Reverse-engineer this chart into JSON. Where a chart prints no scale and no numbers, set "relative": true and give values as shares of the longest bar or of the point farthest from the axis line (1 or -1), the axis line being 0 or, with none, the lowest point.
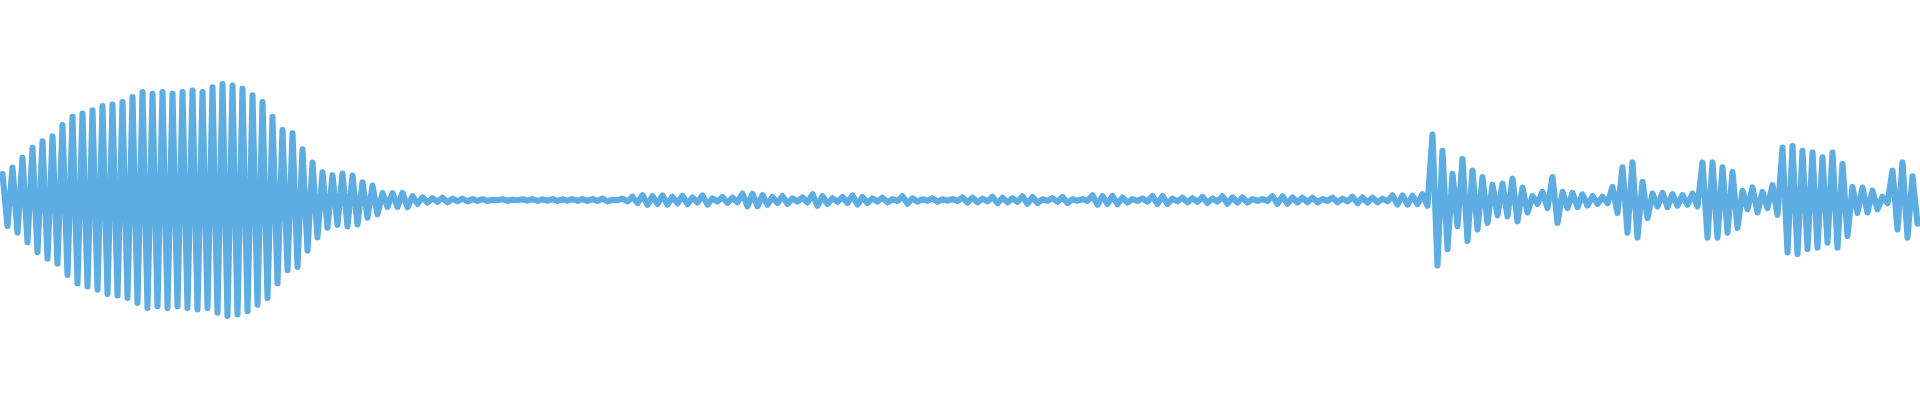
{
  "chart_data": {
    "type": "line",
    "relative": true,
    "categories": [
      null,
      null,
      null,
      null,
      null,
      null,
      null,
      null,
      null,
      null,
      null,
      null,
      null,
      null,
      null,
      null,
      null,
      null,
      null,
      null,
      null,
      null,
      null,
      null,
      null,
      null,
      null,
      null,
      null,
      null,
      null,
      null,
      null,
      null,
      null,
      null,
      null,
      null,
      null,
      null,
      null,
      null,
      null,
      null,
      null,
      null,
      null,
      null,
      null,
      null,
      null,
      null,
      null,
      null,
      null,
      null,
      null,
      null,
      null,
      null,
      null,
      null,
      null,
      null,
      null,
      null,
      null,
      null,
      null,
      null,
      null,
      null,
      null,
      null,
      null,
      null,
      null,
      null,
      null,
      null,
      null,
      null,
      null,
      null,
      null,
      null,
      null,
      null,
      null,
      null,
      null,
      null,
      null,
      null,
      null,
      null,
      null,
      null,
      null,
      null,
      null,
      null,
      null,
      null,
      null,
      null,
      null,
      null,
      null,
      null,
      null,
      null,
      null,
      null,
      null,
      null,
      null,
      null,
      null,
      null,
      null,
      null,
      null,
      null,
      null,
      null,
      null,
      null,
      null,
      null,
      null,
      null,
      null,
      null,
      null,
      null,
      null,
      null,
      null,
      null,
      null,
      null,
      null,
      null,
      null,
      null,
      null,
      null,
      null,
      null,
      null,
      null,
      null,
      null,
      null,
      null,
      null,
      null,
      null,
      null,
      null,
      null,
      null,
      null,
      null,
      null,
      null,
      null,
      null,
      null,
      null,
      null,
      null,
      null,
      null,
      null,
      null,
      null,
      null,
      null,
      null,
      null,
      null,
      null,
      null,
      null,
      null,
      null,
      null,
      null,
      null,
      null,
      null,
      null,
      null,
      null,
      null,
      null,
      null,
      null,
      null,
      null,
      null,
      null,
      null,
      null,
      null,
      null,
      null,
      null,
      null,
      null,
      null,
      null,
      null,
      null,
      null,
      null,
      null,
      null,
      null,
      null,
      null,
      null,
      null,
      null,
      null,
      null,
      null,
      null,
      null,
      null,
      null,
      null,
      null,
      null,
      null,
      null,
      null,
      null,
      null,
      null,
      null,
      null,
      null,
      null,
      null,
      null,
      null,
      null,
      null,
      null,
      null,
      null,
      null,
      null,
      null,
      null,
      null,
      null,
      null,
      null,
      null,
      null,
      null,
      null,
      null,
      null,
      null,
      null,
      null,
      null,
      null,
      null,
      null,
      null,
      null,
      null,
      null,
      null,
      null,
      null,
      null,
      null,
      null,
      null,
      null,
      null,
      null,
      null,
      null,
      null,
      null,
      null,
      null,
      null,
      null,
      null,
      null,
      null,
      null,
      null,
      null,
      null,
      null,
      null,
      null,
      null,
      null,
      null,
      null,
      null,
      null,
      null,
      null,
      null,
      null,
      null,
      null,
      null,
      null,
      null,
      null,
      null,
      null,
      null,
      null,
      null,
      null,
      null,
      null,
      null,
      null,
      null,
      null,
      null,
      null,
      null,
      null,
      null,
      null,
      null,
      null,
      null,
      null,
      null,
      null,
      null,
      null,
      null,
      null,
      null,
      null,
      null,
      null,
      null,
      null,
      null,
      null,
      null,
      null,
      null,
      null,
      null,
      null,
      null,
      null,
      null,
      null,
      null,
      null,
      null,
      null,
      null,
      null,
      null,
      null,
      null,
      null,
      null,
      null,
      null,
      null,
      null
    ],
    "series": [
      {
        "color": "#5dade2",
        "values": [
          0.612,
          0.388,
          0.64,
          0.36,
          0.682,
          0.318,
          0.725,
          0.275,
          0.753,
          0.247,
          0.774,
          0.226,
          0.823,
          0.177,
          0.859,
          0.141,
          0.873,
          0.127,
          0.887,
          0.113,
          0.905,
          0.095,
          0.911,
          0.089,
          0.922,
          0.078,
          0.944,
          0.056,
          0.965,
          0.035,
          0.958,
          0.042,
          0.965,
          0.035,
          0.958,
          0.042,
          0.965,
          0.035,
          0.972,
          0.028,
          0.965,
          0.035,
          0.986,
          0.014,
          1.0,
          0.0,
          0.993,
          0.007,
          0.979,
          0.021,
          0.951,
          0.049,
          0.922,
          0.078,
          0.859,
          0.141,
          0.802,
          0.198,
          0.788,
          0.212,
          0.718,
          0.282,
          0.661,
          0.339,
          0.619,
          0.381,
          0.607,
          0.393,
          0.614,
          0.386,
          0.605,
          0.395,
          0.576,
          0.424,
          0.562,
          0.438,
          0.53,
          0.47,
          0.53,
          0.47,
          0.531,
          0.469,
          0.517,
          0.483,
          0.511,
          0.489,
          0.508,
          0.492,
          0.51,
          0.49,
          0.506,
          0.494,
          0.506,
          0.494,
          0.504,
          0.496,
          0.504,
          0.496,
          0.501,
          0.499,
          0.503,
          0.497,
          0.501,
          0.499,
          0.503,
          0.497,
          0.504,
          0.496,
          0.503,
          0.497,
          0.504,
          0.496,
          0.503,
          0.497,
          0.504,
          0.496,
          0.504,
          0.496,
          0.504,
          0.496,
          0.506,
          0.494,
          0.501,
          0.499,
          0.506,
          0.494,
          0.514,
          0.486,
          0.521,
          0.479,
          0.517,
          0.483,
          0.52,
          0.48,
          0.514,
          0.486,
          0.518,
          0.482,
          0.511,
          0.489,
          0.52,
          0.48,
          0.507,
          0.493,
          0.513,
          0.487,
          0.51,
          0.49,
          0.528,
          0.472,
          0.527,
          0.473,
          0.521,
          0.479,
          0.513,
          0.487,
          0.517,
          0.483,
          0.507,
          0.493,
          0.511,
          0.489,
          0.525,
          0.475,
          0.517,
          0.483,
          0.508,
          0.492,
          0.513,
          0.487,
          0.52,
          0.48,
          0.513,
          0.487,
          0.507,
          0.493,
          0.51,
          0.49,
          0.504,
          0.496,
          0.516,
          0.484,
          0.507,
          0.493,
          0.503,
          0.497,
          0.507,
          0.493,
          0.503,
          0.497,
          0.504,
          0.496,
          0.511,
          0.489,
          0.51,
          0.49,
          0.506,
          0.494,
          0.514,
          0.486,
          0.51,
          0.49,
          0.508,
          0.492,
          0.516,
          0.484,
          0.513,
          0.487,
          0.503,
          0.497,
          0.508,
          0.492,
          0.513,
          0.487,
          0.503,
          0.497,
          0.504,
          0.496,
          0.521,
          0.479,
          0.517,
          0.483,
          0.518,
          0.482,
          0.511,
          0.489,
          0.504,
          0.496,
          0.507,
          0.493,
          0.517,
          0.483,
          0.517,
          0.483,
          0.506,
          0.494,
          0.51,
          0.49,
          0.508,
          0.492,
          0.513,
          0.487,
          0.507,
          0.493,
          0.516,
          0.484,
          0.511,
          0.489,
          0.511,
          0.489,
          0.504,
          0.496,
          0.504,
          0.496,
          0.516,
          0.484,
          0.516,
          0.484,
          0.511,
          0.489,
          0.51,
          0.49,
          0.51,
          0.49,
          0.504,
          0.496,
          0.51,
          0.49,
          0.506,
          0.494,
          0.514,
          0.486,
          0.511,
          0.489,
          0.51,
          0.49,
          0.506,
          0.494,
          0.52,
          0.48,
          0.52,
          0.48,
          0.518,
          0.482,
          0.525,
          0.475,
          0.782,
          0.218,
          0.712,
          0.288,
          0.613,
          0.387,
          0.677,
          0.323,
          0.627,
          0.373,
          0.599,
          0.401,
          0.566,
          0.434,
          0.571,
          0.429,
          0.592,
          0.408,
          0.554,
          0.446,
          0.517,
          0.483,
          0.535,
          0.465,
          0.599,
          0.401,
          0.535,
          0.465,
          0.531,
          0.469,
          0.524,
          0.476,
          0.517,
          0.483,
          0.514,
          0.486,
          0.556,
          0.444,
          0.641,
          0.359,
          0.662,
          0.338,
          0.578,
          0.422,
          0.528,
          0.472,
          0.531,
          0.469,
          0.525,
          0.475,
          0.521,
          0.479,
          0.528,
          0.472,
          0.662,
          0.338,
          0.662,
          0.338,
          0.641,
          0.359,
          0.62,
          0.38,
          0.54,
          0.46,
          0.554,
          0.446,
          0.535,
          0.465,
          0.564,
          0.436,
          0.726,
          0.274,
          0.733,
          0.267,
          0.712,
          0.288,
          0.705,
          0.295,
          0.684,
          0.316,
          0.705,
          0.295,
          0.655,
          0.345,
          0.556,
          0.444,
          0.554,
          0.446,
          0.54,
          0.46,
          0.514,
          0.486,
          0.627,
          0.373,
          0.662,
          0.338,
          0.602,
          0.398
        ]
      }
    ]
  }
}
